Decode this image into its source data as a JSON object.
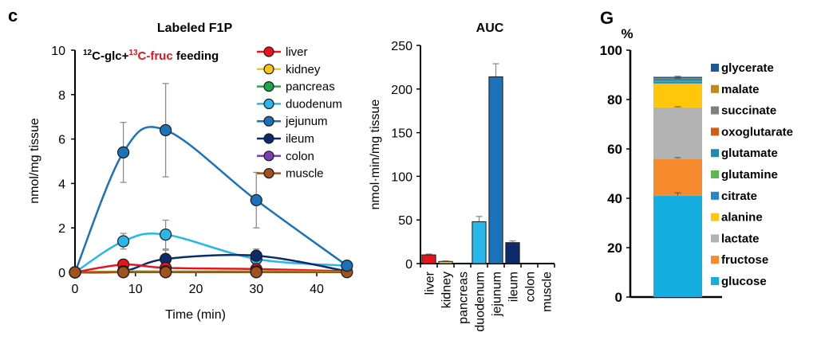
{
  "panels": {
    "c_label": "c",
    "g_label": "G"
  },
  "chart_data": [
    {
      "type": "line",
      "title": "Labeled F1P",
      "annotation": {
        "prefix_sup": "12",
        "prefix": "C-glc+",
        "highlight_sup": "13",
        "highlight": "C-fruc",
        "suffix": " feeding",
        "highlight_color": "#e8141c"
      },
      "xlabel": "Time (min)",
      "ylabel": "nmol/mg tissue",
      "xlim": [
        0,
        45
      ],
      "ylim": [
        0,
        10
      ],
      "xticks": [
        0,
        10,
        20,
        30,
        40
      ],
      "yticks": [
        0,
        2,
        4,
        6,
        8,
        10
      ],
      "x": [
        0,
        8,
        15,
        30,
        45
      ],
      "legend_position": "top-right",
      "grid": false,
      "series": [
        {
          "name": "liver",
          "color": "#e8141c",
          "values": [
            0,
            0.35,
            0.2,
            0.15,
            0.05
          ],
          "errors": [
            0,
            0.05,
            0.05,
            0.05,
            0
          ]
        },
        {
          "name": "kidney",
          "color": "#f5c518",
          "values": [
            0,
            0.05,
            0.05,
            0.05,
            0.02
          ],
          "errors": [
            0,
            0,
            0,
            0,
            0
          ]
        },
        {
          "name": "pancreas",
          "color": "#1ea84a",
          "values": [
            0,
            0.02,
            0.02,
            0.02,
            0.01
          ],
          "errors": [
            0,
            0,
            0,
            0,
            0
          ]
        },
        {
          "name": "duodenum",
          "color": "#29b6e8",
          "values": [
            0,
            1.4,
            1.7,
            0.6,
            0.3
          ],
          "errors": [
            0,
            0.35,
            0.65,
            0.2,
            0
          ]
        },
        {
          "name": "jejunum",
          "color": "#1b72b9",
          "values": [
            0,
            5.4,
            6.4,
            3.25,
            0.3
          ],
          "errors": [
            0,
            1.35,
            2.1,
            1.25,
            0
          ]
        },
        {
          "name": "ileum",
          "color": "#0d2a6b",
          "values": [
            0,
            0.05,
            0.6,
            0.75,
            0.05
          ],
          "errors": [
            0,
            0,
            0.4,
            0.3,
            0
          ]
        },
        {
          "name": "colon",
          "color": "#7b3fb3",
          "values": [
            0,
            0.01,
            0.01,
            0.01,
            0.01
          ],
          "errors": [
            0,
            0,
            0,
            0,
            0
          ]
        },
        {
          "name": "muscle",
          "color": "#a0521c",
          "values": [
            0,
            0.01,
            0.01,
            0.01,
            0.01
          ],
          "errors": [
            0,
            0,
            0,
            0,
            0
          ]
        }
      ]
    },
    {
      "type": "bar",
      "title": "AUC",
      "ylabel": "nmol·min/mg tissue",
      "xlabel": "",
      "ylim": [
        0,
        250
      ],
      "yticks": [
        0,
        50,
        100,
        150,
        200,
        250
      ],
      "categories": [
        "liver",
        "kidney",
        "pancreas",
        "duodenum",
        "jejunum",
        "ileum",
        "colon",
        "muscle"
      ],
      "values": [
        10,
        2.5,
        0.5,
        48,
        214,
        24,
        0.3,
        0.2
      ],
      "errors": [
        1,
        0.5,
        0,
        6,
        15,
        2,
        0,
        0
      ],
      "colors": [
        "#e8141c",
        "#f5c518",
        "#1ea84a",
        "#29b6e8",
        "#1b72b9",
        "#0d2a6b",
        "#7b3fb3",
        "#a0521c"
      ]
    },
    {
      "type": "bar",
      "stacked": true,
      "title": "",
      "ylabel": "%",
      "ylim": [
        0,
        100
      ],
      "yticks": [
        0,
        20,
        40,
        60,
        80,
        100
      ],
      "legend_position": "right",
      "series": [
        {
          "name": "glucose",
          "color": "#15aee0",
          "value": 41.0,
          "error": 1.2
        },
        {
          "name": "fructose",
          "color": "#f58a2c",
          "value": 15.0,
          "error": 0.5
        },
        {
          "name": "lactate",
          "color": "#b3b3b3",
          "value": 20.8,
          "error": 0.3
        },
        {
          "name": "alanine",
          "color": "#ffc60a",
          "value": 9.7,
          "error": 0
        },
        {
          "name": "citrate",
          "color": "#2a86c8",
          "value": 0.8,
          "error": 0
        },
        {
          "name": "glutamine",
          "color": "#5ab84e",
          "value": 0.2,
          "error": 0
        },
        {
          "name": "glutamate",
          "color": "#1f89b0",
          "value": 0.8,
          "error": 0.2
        },
        {
          "name": "oxoglutarate",
          "color": "#d55a12",
          "value": 0.1,
          "error": 0
        },
        {
          "name": "succinate",
          "color": "#7f7f7f",
          "value": 0.1,
          "error": 0
        },
        {
          "name": "malate",
          "color": "#bf8a1a",
          "value": 0.1,
          "error": 0
        },
        {
          "name": "glycerate",
          "color": "#1a5a96",
          "value": 0.6,
          "error": 0.2
        }
      ],
      "legend_order": [
        "glycerate",
        "malate",
        "succinate",
        "oxoglutarate",
        "glutamate",
        "glutamine",
        "citrate",
        "alanine",
        "lactate",
        "fructose",
        "glucose"
      ]
    }
  ]
}
